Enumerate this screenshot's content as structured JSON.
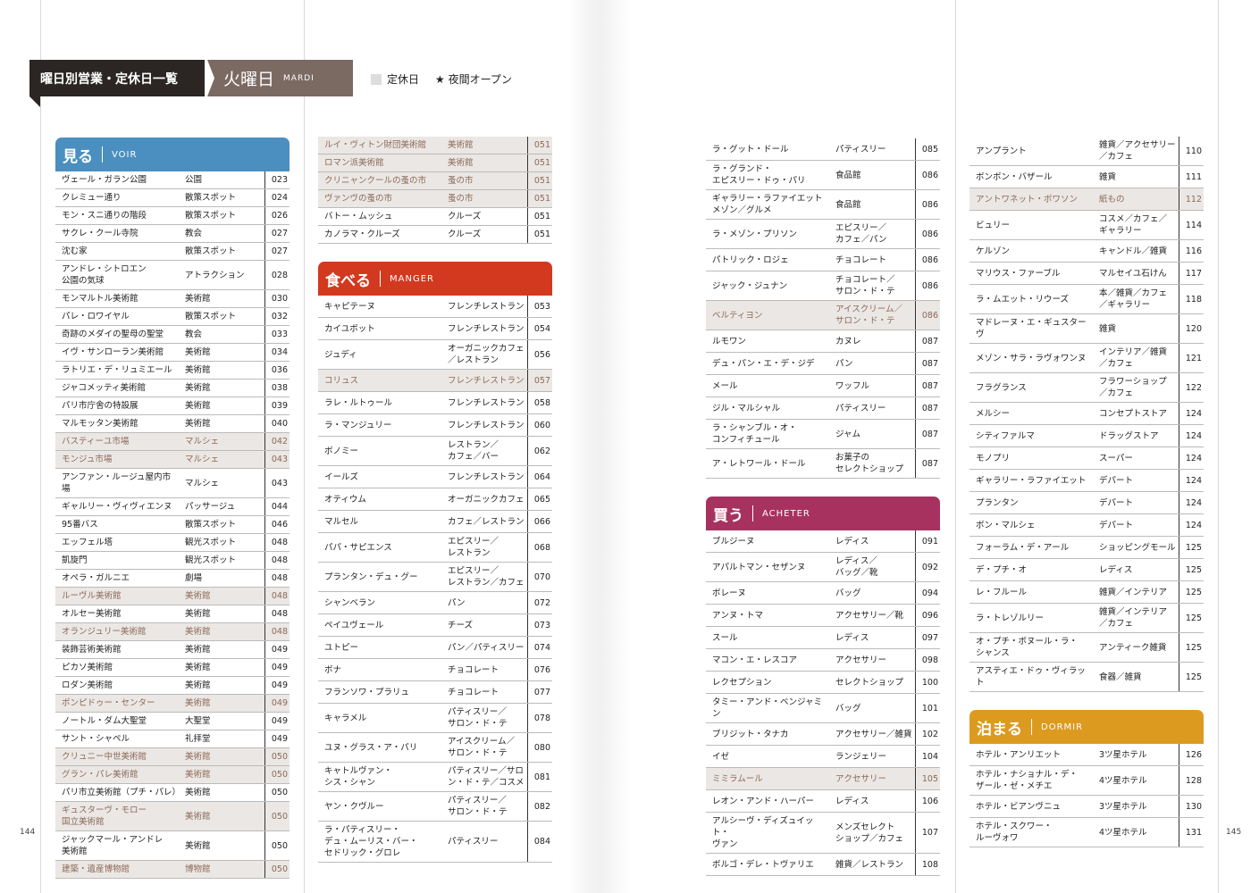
{
  "header": {
    "title": "曜日別営業・定休日一覧",
    "day": "火曜日",
    "day_fr": "MARDI"
  },
  "legend": {
    "closed": "定休日",
    "night": "★ 夜間オープン"
  },
  "page_numbers": [
    "144",
    "145"
  ],
  "columns": [
    {
      "blocks": [
        {
          "title": "見る",
          "subtitle": "VOIR",
          "color": "#4a8fc0",
          "rows": [
            [
              "ヴェール・ガラン公園",
              "公園",
              "023"
            ],
            [
              "クレミュー通り",
              "散策スポット",
              "024"
            ],
            [
              "モン・スニ通りの階段",
              "散策スポット",
              "026"
            ],
            [
              "サクレ・クール寺院",
              "教会",
              "027"
            ],
            [
              "沈む家",
              "散策スポット",
              "027"
            ],
            [
              "アンドレ・シトロエン\n公園の気球",
              "アトラクション",
              "028"
            ],
            [
              "モンマルトル美術館",
              "美術館",
              "030"
            ],
            [
              "パレ・ロワイヤル",
              "散策スポット",
              "032"
            ],
            [
              "奇跡のメダイの聖母の聖堂",
              "教会",
              "033"
            ],
            [
              "イヴ・サンローラン美術館",
              "美術館",
              "034"
            ],
            [
              "ラトリエ・デ・リュミエール",
              "美術館",
              "036"
            ],
            [
              "ジャコメッティ美術館",
              "美術館",
              "038"
            ],
            [
              "パリ市庁舎の特設展",
              "美術館",
              "039"
            ],
            [
              "マルモッタン美術館",
              "美術館",
              "040"
            ],
            [
              "バスティーユ市場",
              "マルシェ",
              "042",
              true
            ],
            [
              "モンジュ市場",
              "マルシェ",
              "043",
              true
            ],
            [
              "アンファン・ルージュ屋内市場",
              "マルシェ",
              "043"
            ],
            [
              "ギャルリー・ヴィヴィエンヌ",
              "パッサージュ",
              "044"
            ],
            [
              "95番バス",
              "散策スポット",
              "046"
            ],
            [
              "エッフェル塔",
              "観光スポット",
              "048"
            ],
            [
              "凱旋門",
              "観光スポット",
              "048"
            ],
            [
              "オペラ・ガルニエ",
              "劇場",
              "048"
            ],
            [
              "ルーヴル美術館",
              "美術館",
              "048",
              true
            ],
            [
              "オルセー美術館",
              "美術館",
              "048"
            ],
            [
              "オランジュリー美術館",
              "美術館",
              "048",
              true
            ],
            [
              "装飾芸術美術館",
              "美術館",
              "049"
            ],
            [
              "ピカソ美術館",
              "美術館",
              "049"
            ],
            [
              "ロダン美術館",
              "美術館",
              "049"
            ],
            [
              "ポンピドゥー・センター",
              "美術館",
              "049",
              true
            ],
            [
              "ノートル・ダム大聖堂",
              "大聖堂",
              "049"
            ],
            [
              "サント・シャペル",
              "礼拝堂",
              "049"
            ],
            [
              "クリュニー中世美術館",
              "美術館",
              "050",
              true
            ],
            [
              "グラン・パレ美術館",
              "美術館",
              "050",
              true
            ],
            [
              "パリ市立美術館（プチ・パレ）",
              "美術館",
              "050"
            ],
            [
              "ギュスターヴ・モロー\n国立美術館",
              "美術館",
              "050",
              true
            ],
            [
              "ジャックマール・アンドレ\n美術館",
              "美術館",
              "050"
            ],
            [
              "建築・遺産博物館",
              "博物館",
              "050",
              true
            ]
          ]
        }
      ]
    },
    {
      "blocks": [
        {
          "rows": [
            [
              "ルイ・ヴィトン財団美術館",
              "美術館",
              "051",
              true
            ],
            [
              "ロマン派美術館",
              "美術館",
              "051",
              true
            ],
            [
              "クリニャンクールの蚤の市",
              "蚤の市",
              "051",
              true
            ],
            [
              "ヴァンヴの蚤の市",
              "蚤の市",
              "051",
              true
            ],
            [
              "バトー・ムッシュ",
              "クルーズ",
              "051"
            ],
            [
              "カノラマ・クルーズ",
              "クルーズ",
              "051"
            ]
          ]
        },
        {
          "title": "食べる",
          "subtitle": "MANGER",
          "color": "#d3391f",
          "rows": [
            [
              "キャピテーヌ",
              "フレンチレストラン",
              "053"
            ],
            [
              "カイユボット",
              "フレンチレストラン",
              "054"
            ],
            [
              "ジュディ",
              "オーガニックカフェ\n／レストラン",
              "056"
            ],
            [
              "コリュス",
              "フレンチレストラン",
              "057",
              true
            ],
            [
              "ラレ・ルトゥール",
              "フレンチレストラン",
              "058"
            ],
            [
              "ラ・マンジュリー",
              "フレンチレストラン",
              "060"
            ],
            [
              "ボノミー",
              "レストラン／\nカフェ／バー",
              "062"
            ],
            [
              "イールズ",
              "フレンチレストラン",
              "064"
            ],
            [
              "オティウム",
              "オーガニックカフェ",
              "065"
            ],
            [
              "マルセル",
              "カフェ／レストラン",
              "066"
            ],
            [
              "パパ・サピエンス",
              "エピスリー／\nレストラン",
              "068"
            ],
            [
              "プランタン・デュ・グー",
              "エピスリー／\nレストラン／カフェ",
              "070"
            ],
            [
              "シャンベラン",
              "パン",
              "072"
            ],
            [
              "ペイユヴェール",
              "チーズ",
              "073"
            ],
            [
              "ユトピー",
              "パン／パティスリー",
              "074"
            ],
            [
              "ボナ",
              "チョコレート",
              "076"
            ],
            [
              "フランソワ・プラリュ",
              "チョコレート",
              "077"
            ],
            [
              "キャラメル",
              "パティスリー／\nサロン・ド・テ",
              "078"
            ],
            [
              "ユヌ・グラス・ア・パリ",
              "アイスクリーム／\nサロン・ド・テ",
              "080"
            ],
            [
              "キャトルヴァン・\nシス・シャン",
              "パティスリー／サロ\nン・ド・テ／コスメ",
              "081"
            ],
            [
              "ヤン・クヴルー",
              "パティスリー／\nサロン・ド・テ",
              "082"
            ],
            [
              "ラ・パティスリー・\nデュ・ムーリス・バー・\nセドリック・グロレ",
              "パティスリー",
              "084"
            ]
          ]
        }
      ]
    },
    {
      "blocks": [
        {
          "rows": [
            [
              "ラ・グット・ドール",
              "パティスリー",
              "085"
            ],
            [
              "ラ・グランド・\nエピスリー・ドゥ・パリ",
              "食品館",
              "086"
            ],
            [
              "ギャラリー・ラファイエット\nメゾン／グルメ",
              "食品館",
              "086"
            ],
            [
              "ラ・メゾン・プリソン",
              "エピスリー／\nカフェ／パン",
              "086"
            ],
            [
              "パトリック・ロジェ",
              "チョコレート",
              "086"
            ],
            [
              "ジャック・ジュナン",
              "チョコレート／\nサロン・ド・テ",
              "086"
            ],
            [
              "ベルティヨン",
              "アイスクリーム／\nサロン・ド・テ",
              "086",
              true
            ],
            [
              "ルモワン",
              "カヌレ",
              "087"
            ],
            [
              "デュ・パン・エ・デ・ジデ",
              "パン",
              "087"
            ],
            [
              "メール",
              "ワッフル",
              "087"
            ],
            [
              "ジル・マルシャル",
              "パティスリー",
              "087"
            ],
            [
              "ラ・シャンブル・オ・\nコンフィチュール",
              "ジャム",
              "087"
            ],
            [
              "ア・レトワール・ドール",
              "お菓子の\nセレクトショップ",
              "087"
            ]
          ]
        },
        {
          "title": "買う",
          "subtitle": "ACHETER",
          "color": "#a8325f",
          "rows": [
            [
              "ブルジーヌ",
              "レディス",
              "091"
            ],
            [
              "アパルトマン・セザンヌ",
              "レディス／\nバッグ／靴",
              "092"
            ],
            [
              "ボレーヌ",
              "バッグ",
              "094"
            ],
            [
              "アンヌ・トマ",
              "アクセサリー／靴",
              "096"
            ],
            [
              "スール",
              "レディス",
              "097"
            ],
            [
              "マコン・エ・レスコア",
              "アクセサリー",
              "098"
            ],
            [
              "レクセプション",
              "セレクトショップ",
              "100"
            ],
            [
              "タミー・アンド・ベンジャミン",
              "バッグ",
              "101"
            ],
            [
              "ブリジット・タナカ",
              "アクセサリー／雑貨",
              "102"
            ],
            [
              "イゼ",
              "ランジェリー",
              "104"
            ],
            [
              "ミミラムール",
              "アクセサリー",
              "105",
              true
            ],
            [
              "レオン・アンド・ハーパー",
              "レディス",
              "106"
            ],
            [
              "アルシーヴ・ディズュイット・\nヴァン",
              "メンズセレクト\nショップ／カフェ",
              "107"
            ],
            [
              "ボルゴ・デレ・トヴァリエ",
              "雑貨／レストラン",
              "108"
            ]
          ]
        }
      ]
    },
    {
      "blocks": [
        {
          "rows": [
            [
              "アンプラント",
              "雑貨／アクセサリー\n／カフェ",
              "110"
            ],
            [
              "ボンボン・バザール",
              "雑貨",
              "111"
            ],
            [
              "アントワネット・ポワソン",
              "紙もの",
              "112",
              true
            ],
            [
              "ビュリー",
              "コスメ／カフェ／\nギャラリー",
              "114"
            ],
            [
              "ケルゾン",
              "キャンドル／雑貨",
              "116"
            ],
            [
              "マリウス・ファーブル",
              "マルセイユ石けん",
              "117"
            ],
            [
              "ラ・ムエット・リウーズ",
              "本／雑貨／カフェ\n／ギャラリー",
              "118"
            ],
            [
              "マドレーヌ・エ・ギュスターヴ",
              "雑貨",
              "120"
            ],
            [
              "メゾン・サラ・ラヴォワンヌ",
              "インテリア／雑貨\n／カフェ",
              "121"
            ],
            [
              "フラグランス",
              "フラワーショップ\n／カフェ",
              "122"
            ],
            [
              "メルシー",
              "コンセプトストア",
              "124"
            ],
            [
              "シティファルマ",
              "ドラッグストア",
              "124"
            ],
            [
              "モノプリ",
              "スーパー",
              "124"
            ],
            [
              "ギャラリー・ラファイエット",
              "デパート",
              "124"
            ],
            [
              "プランタン",
              "デパート",
              "124"
            ],
            [
              "ボン・マルシェ",
              "デパート",
              "124"
            ],
            [
              "フォーラム・デ・アール",
              "ショッピングモール",
              "125"
            ],
            [
              "デ・プチ・オ",
              "レディス",
              "125"
            ],
            [
              "レ・フルール",
              "雑貨／インテリア",
              "125"
            ],
            [
              "ラ・トレゾルリー",
              "雑貨／インテリア\n／カフェ",
              "125"
            ],
            [
              "オ・プチ・ボヌール・ラ・\nシャンス",
              "アンティーク雑貨",
              "125"
            ],
            [
              "アスティエ・ドゥ・ヴィラット",
              "食器／雑貨",
              "125"
            ]
          ]
        },
        {
          "title": "泊まる",
          "subtitle": "DORMIR",
          "color": "#dc9b1f",
          "rows": [
            [
              "ホテル・アンリエット",
              "3ツ星ホテル",
              "126"
            ],
            [
              "ホテル・ナショナル・デ・\nザール・ゼ・メチエ",
              "4ツ星ホテル",
              "128"
            ],
            [
              "ホテル・ビアンヴニュ",
              "3ツ星ホテル",
              "130"
            ],
            [
              "ホテル・スクワー・\nルーヴォワ",
              "4ツ星ホテル",
              "131"
            ]
          ]
        }
      ]
    }
  ]
}
